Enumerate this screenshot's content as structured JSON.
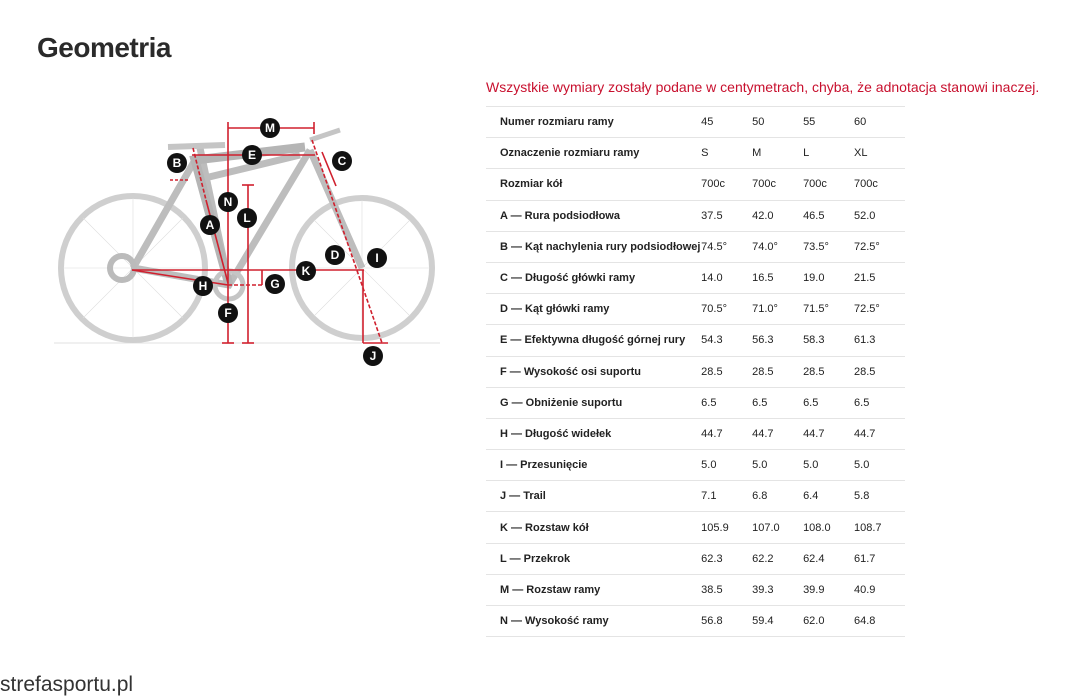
{
  "title": "Geometria",
  "note": "Wszystkie wymiary zostały podane w centymetrach, chyba, że adnotacja stanowi inaczej.",
  "colors": {
    "accent": "#c8102e"
  },
  "diagram_labels": [
    "M",
    "E",
    "B",
    "C",
    "N",
    "L",
    "A",
    "D",
    "I",
    "K",
    "H",
    "G",
    "F",
    "J"
  ],
  "rows": [
    {
      "label": "Numer rozmiaru ramy",
      "values": [
        "45",
        "50",
        "55",
        "60"
      ]
    },
    {
      "label": "Oznaczenie rozmiaru ramy",
      "values": [
        "S",
        "M",
        "L",
        "XL"
      ]
    },
    {
      "label": "Rozmiar kół",
      "values": [
        "700c",
        "700c",
        "700c",
        "700c"
      ]
    },
    {
      "label": "A — Rura podsiodłowa",
      "values": [
        "37.5",
        "42.0",
        "46.5",
        "52.0"
      ]
    },
    {
      "label": "B — Kąt nachylenia rury podsiodłowej",
      "values": [
        "74.5°",
        "74.0°",
        "73.5°",
        "72.5°"
      ]
    },
    {
      "label": "C — Długość główki ramy",
      "values": [
        "14.0",
        "16.5",
        "19.0",
        "21.5"
      ]
    },
    {
      "label": "D — Kąt główki ramy",
      "values": [
        "70.5°",
        "71.0°",
        "71.5°",
        "72.5°"
      ]
    },
    {
      "label": "E — Efektywna długość górnej rury",
      "values": [
        "54.3",
        "56.3",
        "58.3",
        "61.3"
      ]
    },
    {
      "label": "F — Wysokość osi suportu",
      "values": [
        "28.5",
        "28.5",
        "28.5",
        "28.5"
      ]
    },
    {
      "label": "G — Obniżenie suportu",
      "values": [
        "6.5",
        "6.5",
        "6.5",
        "6.5"
      ]
    },
    {
      "label": "H — Długość widełek",
      "values": [
        "44.7",
        "44.7",
        "44.7",
        "44.7"
      ]
    },
    {
      "label": "I — Przesunięcie",
      "values": [
        "5.0",
        "5.0",
        "5.0",
        "5.0"
      ]
    },
    {
      "label": "J — Trail",
      "values": [
        "7.1",
        "6.8",
        "6.4",
        "5.8"
      ]
    },
    {
      "label": "K — Rozstaw kół",
      "values": [
        "105.9",
        "107.0",
        "108.0",
        "108.7"
      ]
    },
    {
      "label": "L — Przekrok",
      "values": [
        "62.3",
        "62.2",
        "62.4",
        "61.7"
      ]
    },
    {
      "label": "M — Rozstaw ramy",
      "values": [
        "38.5",
        "39.3",
        "39.9",
        "40.9"
      ]
    },
    {
      "label": "N — Wysokość ramy",
      "values": [
        "56.8",
        "59.4",
        "62.0",
        "64.8"
      ]
    }
  ],
  "watermark": "strefasportu.pl"
}
